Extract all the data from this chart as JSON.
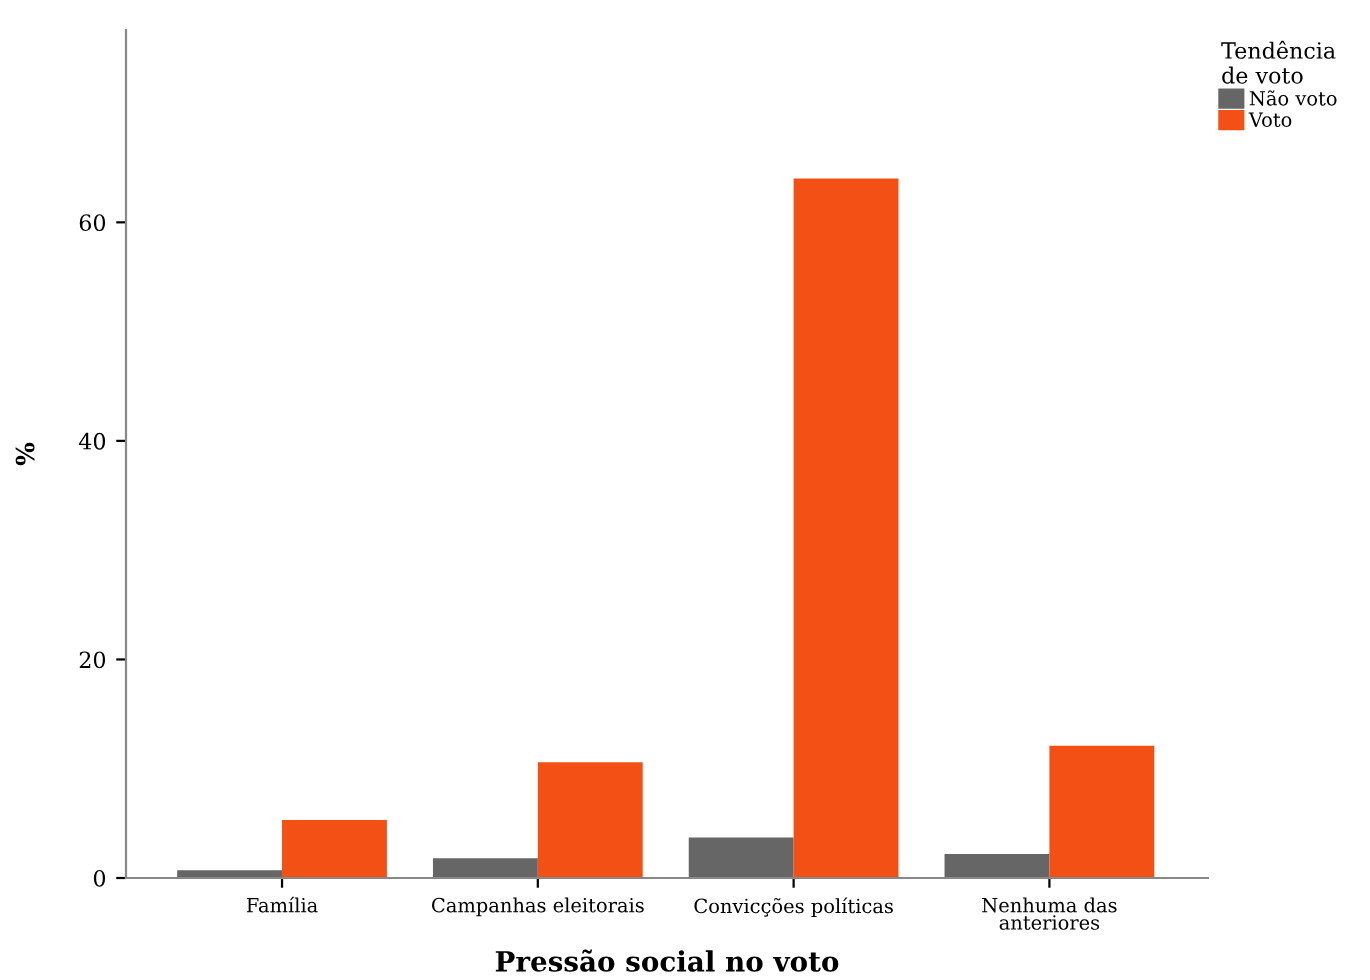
{
  "chart_data": {
    "type": "bar",
    "xlabel": "Pressão social no voto",
    "ylabel": "%",
    "legend_title": "Tendência\nde voto",
    "categories": [
      "Família",
      "Campanhas eleitorais",
      "Convicções políticas",
      "Nenhuma das\nanteriores"
    ],
    "series": [
      {
        "name": "Não voto",
        "color": "#666666",
        "values": [
          0.7,
          1.8,
          3.7,
          2.2
        ]
      },
      {
        "name": "Voto",
        "color": "#f25015",
        "values": [
          5.3,
          10.6,
          64.0,
          12.1
        ]
      }
    ],
    "ylim": [
      0,
      77.6
    ],
    "yticks": [
      0,
      20,
      40,
      60
    ],
    "grid": false,
    "legend": "top right"
  }
}
